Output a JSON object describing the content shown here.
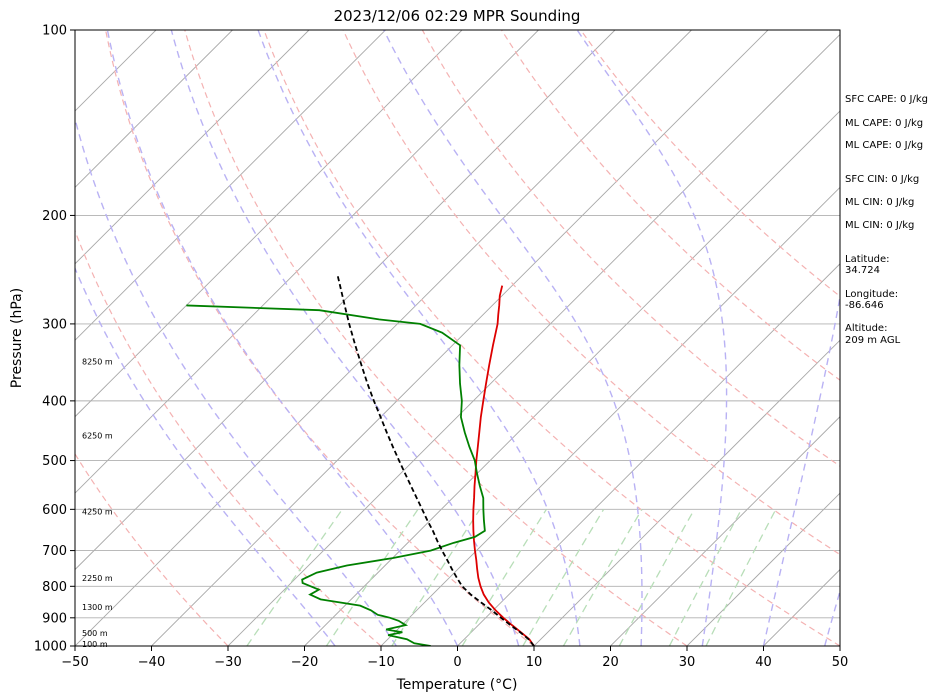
{
  "chart_data": {
    "type": "line",
    "title": "2023/12/06 02:29 MPR Sounding",
    "xlabel": "Temperature (°C)",
    "ylabel": "Pressure (hPa)",
    "xlim": [
      -50,
      50
    ],
    "ylim": [
      1000,
      100
    ],
    "y_scale": "log",
    "x_ticks": [
      -50,
      -40,
      -30,
      -20,
      -10,
      0,
      10,
      20,
      30,
      40,
      50
    ],
    "x_tick_labels": [
      "−50",
      "−40",
      "−30",
      "−20",
      "−10",
      "0",
      "10",
      "20",
      "30",
      "40",
      "50"
    ],
    "y_ticks": [
      1000,
      900,
      800,
      700,
      600,
      500,
      400,
      300,
      200,
      100
    ],
    "y_tick_labels": [
      "1000",
      "900",
      "800",
      "700",
      "600",
      "500",
      "400",
      "300",
      "200",
      "100"
    ],
    "grid": true,
    "skew_t_deg_per_ln_p": 35,
    "isotherm_values_c": [
      -120,
      -110,
      -100,
      -90,
      -80,
      -70,
      -60,
      -50,
      -40,
      -30,
      -20,
      -10,
      0,
      10,
      20,
      30,
      40,
      50
    ],
    "dry_adiabat_values_c": [
      -30,
      -10,
      10,
      30,
      50,
      70,
      90,
      110,
      130
    ],
    "moist_adiabat_values_c": [
      -16,
      -8,
      0,
      8,
      16,
      24,
      32,
      40,
      48
    ],
    "mixing_ratio_values_gkg": [
      0.4,
      1,
      2,
      4,
      7,
      10,
      16,
      24,
      32
    ],
    "series": [
      {
        "color": "#dd0000",
        "pressure": [
          1000,
          975,
          950,
          925,
          900,
          875,
          850,
          825,
          800,
          775,
          750,
          725,
          700,
          675,
          650,
          625,
          600,
          575,
          550,
          525,
          500,
          475,
          450,
          425,
          400,
          375,
          350,
          325,
          300,
          290,
          280,
          270,
          260
        ],
        "values": [
          10,
          8.5,
          6.5,
          4.4,
          2.3,
          0.3,
          -1.6,
          -3.3,
          -4.8,
          -6.2,
          -7.5,
          -8.8,
          -10.2,
          -11.6,
          -13.0,
          -14.4,
          -15.8,
          -17.2,
          -18.7,
          -20.2,
          -21.8,
          -23.4,
          -25.1,
          -26.9,
          -28.7,
          -30.6,
          -32.6,
          -34.7,
          -36.9,
          -38.0,
          -39.1,
          -40.3,
          -41.3
        ]
      },
      {
        "color": "#008000",
        "pressure": [
          1000,
          990,
          975,
          960,
          950,
          940,
          925,
          910,
          900,
          890,
          875,
          860,
          850,
          840,
          825,
          810,
          800,
          790,
          780,
          760,
          740,
          720,
          700,
          680,
          665,
          650,
          625,
          600,
          575,
          550,
          525,
          500,
          475,
          450,
          425,
          400,
          375,
          350,
          325,
          310,
          300,
          295,
          285,
          280
        ],
        "values": [
          -3.5,
          -6.0,
          -7.5,
          -10.5,
          -9.0,
          -11.5,
          -9.5,
          -11.0,
          -12.5,
          -14.5,
          -16.0,
          -18.0,
          -21.0,
          -24.0,
          -26.0,
          -25.5,
          -27.0,
          -28.5,
          -29.0,
          -28.0,
          -25.0,
          -20.0,
          -16.0,
          -14.0,
          -12.0,
          -11.5,
          -13.0,
          -14.5,
          -16.0,
          -18.0,
          -20.0,
          -22.0,
          -24.5,
          -27.0,
          -29.5,
          -31.5,
          -34.0,
          -36.5,
          -39.0,
          -43.0,
          -47.0,
          -53.0,
          -62.0,
          -80.0
        ]
      },
      {
        "color": "#000000",
        "pressure": [
          1000,
          975,
          950,
          925,
          900,
          875,
          850,
          825,
          800,
          775,
          750,
          725,
          700,
          675,
          650,
          625,
          600,
          575,
          550,
          525,
          500,
          475,
          450,
          425,
          400,
          375,
          350,
          325,
          300,
          280,
          260,
          250
        ],
        "values": [
          10,
          8.4,
          6.4,
          4.2,
          2.0,
          -0.2,
          -2.6,
          -5.0,
          -7.2,
          -9.0,
          -10.8,
          -12.6,
          -14.5,
          -16.4,
          -18.3,
          -20.4,
          -22.5,
          -24.7,
          -27.0,
          -29.4,
          -31.9,
          -34.5,
          -37.2,
          -40.0,
          -43.0,
          -46.1,
          -49.3,
          -52.7,
          -56.3,
          -59.3,
          -62.5,
          -64.2
        ]
      }
    ],
    "height_labels": [
      {
        "text": "100 m",
        "pressure": 992
      },
      {
        "text": "500 m",
        "pressure": 953
      },
      {
        "text": "1300 m",
        "pressure": 865
      },
      {
        "text": "2250 m",
        "pressure": 776
      },
      {
        "text": "4250 m",
        "pressure": 605
      },
      {
        "text": "6250 m",
        "pressure": 455
      },
      {
        "text": "8250 m",
        "pressure": 345
      }
    ],
    "side_panel": [
      "SFC CAPE: 0 J/kg",
      "ML CAPE: 0 J/kg",
      "ML CAPE: 0 J/kg",
      "SFC CIN: 0 J/kg",
      "ML CIN: 0 J/kg",
      "ML CIN: 0 J/kg",
      "Latitude:",
      "34.724",
      "Longitude:",
      "-86.646",
      "Altitude:",
      "209 m AGL"
    ]
  }
}
